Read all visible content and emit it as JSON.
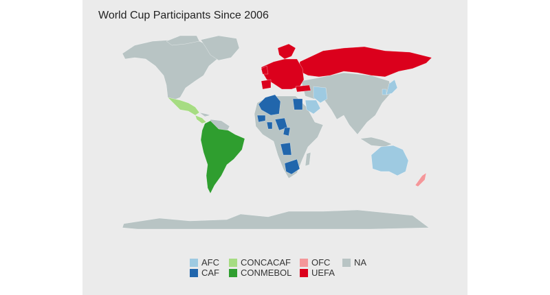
{
  "title": "World Cup Participants Since 2006",
  "colors": {
    "background": "#ebebeb",
    "AFC": "#9ecae1",
    "CAF": "#2166ac",
    "CONCACAF": "#a6dc82",
    "CONMEBOL": "#2f9e2f",
    "OFC": "#f4979a",
    "UEFA": "#db001c",
    "NA": "#b8c4c4"
  },
  "legend": {
    "items": [
      {
        "key": "AFC",
        "label": "AFC"
      },
      {
        "key": "CAF",
        "label": "CAF"
      },
      {
        "key": "CONCACAF",
        "label": "CONCACAF"
      },
      {
        "key": "CONMEBOL",
        "label": "CONMEBOL"
      },
      {
        "key": "OFC",
        "label": "OFC"
      },
      {
        "key": "UEFA",
        "label": "UEFA"
      },
      {
        "key": "NA",
        "label": "NA"
      }
    ]
  }
}
